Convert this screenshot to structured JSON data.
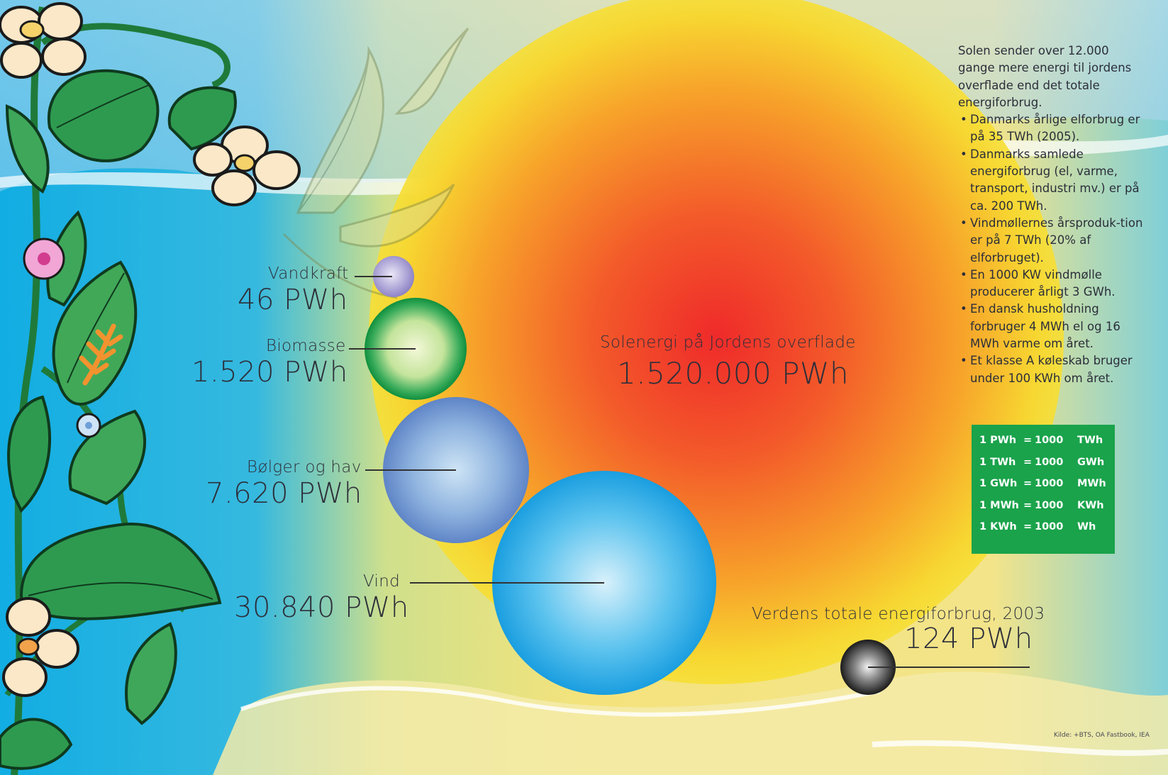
{
  "sun": {
    "name": "Solenergi på Jordens overflade",
    "value": "1.520.000 PWh",
    "amount_pwh": 1520000
  },
  "sources": [
    {
      "key": "vandkraft",
      "name": "Vandkraft",
      "value": "46 PWh",
      "amount_pwh": 46
    },
    {
      "key": "biomasse",
      "name": "Biomasse",
      "value": "1.520 PWh",
      "amount_pwh": 1520
    },
    {
      "key": "bolger",
      "name": "Bølger og hav",
      "value": "7.620 PWh",
      "amount_pwh": 7620
    },
    {
      "key": "vind",
      "name": "Vind",
      "value": "30.840 PWh",
      "amount_pwh": 30840
    }
  ],
  "world": {
    "name": "Verdens totale energiforbrug, 2003",
    "value": "124 PWh",
    "amount_pwh": 124
  },
  "info": {
    "intro": "Solen sender over 12.000 gange mere energi til jordens overflade end det totale energiforbrug.",
    "bullets": [
      "Danmarks årlige elforbrug er på 35 TWh (2005).",
      "Danmarks samlede energiforbrug (el, varme, transport, industri mv.) er på ca. 200 TWh.",
      "Vindmøllernes årsproduk-tion er på 7 TWh (20% af elforbruget).",
      "En 1000 KW vindmølle producerer årligt 3 GWh.",
      "En dansk husholdning forbruger 4 MWh el og 16 MWh varme om året.",
      "Et klasse A køleskab bruger under 100 KWh om året."
    ]
  },
  "units": [
    {
      "left": "1 PWh",
      "eq": "=",
      "right": "1000",
      "unit": "TWh"
    },
    {
      "left": "1 TWh",
      "eq": "=",
      "right": "1000",
      "unit": "GWh"
    },
    {
      "left": "1 GWh",
      "eq": "=",
      "right": "1000",
      "unit": "MWh"
    },
    {
      "left": "1 MWh",
      "eq": "=",
      "right": "1000",
      "unit": "KWh"
    },
    {
      "left": "1 KWh",
      "eq": "=",
      "right": "1000",
      "unit": "Wh"
    }
  ],
  "source_note": "Kilde: +BTS, OA Fastbook, IEA",
  "colors": {
    "sun_core": "#ef2a2a",
    "sun_mid": "#f7a12a",
    "sun_edge": "#f7df34",
    "sky": "#14aee4",
    "leaf": "#2e9a4f",
    "unit_box": "#1aa34b"
  }
}
